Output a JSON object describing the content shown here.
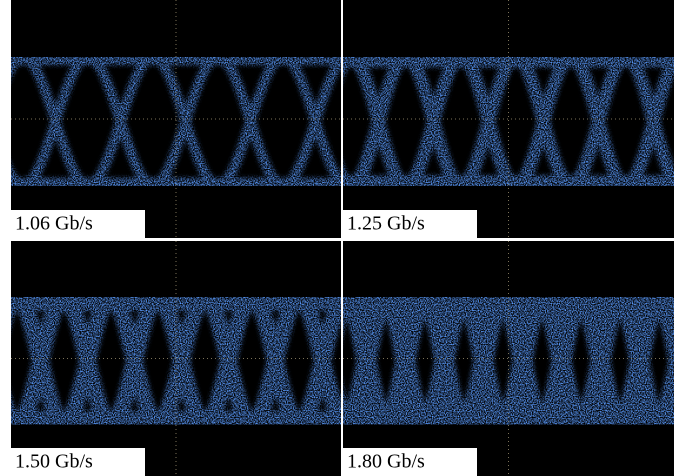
{
  "panels": [
    {
      "label": "1.06 Gb/s"
    },
    {
      "label": "1.25 Gb/s"
    },
    {
      "label": "1.50 Gb/s"
    },
    {
      "label": "1.80 Gb/s"
    }
  ]
}
